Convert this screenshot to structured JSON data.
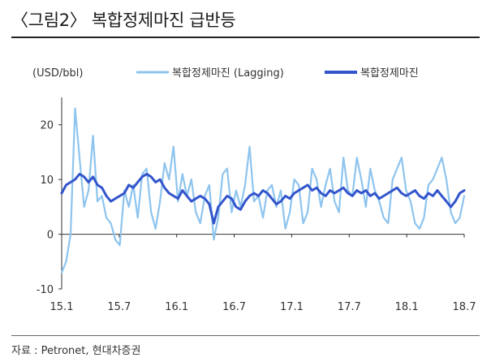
{
  "title": "〈그림2〉 복합정제마진 급반등",
  "source": "자료 : Petronet, 현대차증권",
  "chart_data": {
    "type": "line",
    "unit_label": "(USD/bbl)",
    "x_ticks": [
      "15.1",
      "15.7",
      "16.1",
      "16.7",
      "17.1",
      "17.7",
      "18.1",
      "18.7"
    ],
    "y_ticks": [
      -10,
      0,
      10,
      20
    ],
    "ylim": [
      -10,
      25
    ],
    "xlim": [
      0,
      45
    ],
    "legend_position": "top",
    "grid": false,
    "series": [
      {
        "name": "복합정제마진 (Lagging)",
        "color": "#8ec4ee",
        "x": [
          0,
          0.5,
          1,
          1.5,
          2,
          2.5,
          3,
          3.5,
          4,
          4.5,
          5,
          5.5,
          6,
          6.5,
          7,
          7.5,
          8,
          8.5,
          9,
          9.5,
          10,
          10.5,
          11,
          11.5,
          12,
          12.5,
          13,
          13.5,
          14,
          14.5,
          15,
          15.5,
          16,
          16.5,
          17,
          17.5,
          18,
          18.5,
          19,
          19.5,
          20,
          20.5,
          21,
          21.5,
          22,
          22.5,
          23,
          23.5,
          24,
          24.5,
          25,
          25.5,
          26,
          26.5,
          27,
          27.5,
          28,
          28.5,
          29,
          29.5,
          30,
          30.5,
          31,
          31.5,
          32,
          32.5,
          33,
          33.5,
          34,
          34.5,
          35,
          35.5,
          36,
          36.5,
          37,
          37.5,
          38,
          38.5,
          39,
          39.5,
          40,
          40.5,
          41,
          41.5,
          42,
          42.5,
          43,
          43.5,
          44,
          44.5,
          45
        ],
        "values": [
          -7,
          -5,
          0,
          23,
          14,
          5,
          8,
          18,
          6,
          7,
          3,
          2,
          -1,
          -2,
          8,
          5,
          9,
          3,
          11,
          12,
          4,
          1,
          6,
          13,
          10,
          16,
          6,
          11,
          7,
          10,
          4,
          2,
          7,
          9,
          -1,
          3,
          11,
          12,
          4,
          8,
          5,
          9,
          16,
          6,
          7,
          3,
          8,
          9,
          5,
          8,
          1,
          4,
          10,
          9,
          2,
          4,
          12,
          10,
          5,
          9,
          12,
          6,
          4,
          14,
          8,
          7,
          14,
          10,
          5,
          12,
          8,
          6,
          3,
          2,
          10,
          12,
          14,
          8,
          6,
          2,
          1,
          3,
          9,
          10,
          12,
          14,
          10,
          4,
          2,
          3,
          7
        ]
      },
      {
        "name": "복합정제마진",
        "color": "#3355cc",
        "x": [
          0,
          0.5,
          1,
          1.5,
          2,
          2.5,
          3,
          3.5,
          4,
          4.5,
          5,
          5.5,
          6,
          6.5,
          7,
          7.5,
          8,
          8.5,
          9,
          9.5,
          10,
          10.5,
          11,
          11.5,
          12,
          12.5,
          13,
          13.5,
          14,
          14.5,
          15,
          15.5,
          16,
          16.5,
          17,
          17.5,
          18,
          18.5,
          19,
          19.5,
          20,
          20.5,
          21,
          21.5,
          22,
          22.5,
          23,
          23.5,
          24,
          24.5,
          25,
          25.5,
          26,
          26.5,
          27,
          27.5,
          28,
          28.5,
          29,
          29.5,
          30,
          30.5,
          31,
          31.5,
          32,
          32.5,
          33,
          33.5,
          34,
          34.5,
          35,
          35.5,
          36,
          36.5,
          37,
          37.5,
          38,
          38.5,
          39,
          39.5,
          40,
          40.5,
          41,
          41.5,
          42,
          42.5,
          43,
          43.5,
          44,
          44.5,
          45
        ],
        "values": [
          7.5,
          9,
          9.5,
          10,
          11,
          10.5,
          9.5,
          10.5,
          9,
          8.5,
          7,
          6,
          6.5,
          7,
          7.5,
          9,
          8.5,
          9.5,
          10.5,
          11,
          10.5,
          9.5,
          10,
          8.5,
          7.5,
          7,
          6.5,
          8,
          7,
          6,
          6.5,
          7,
          6.5,
          5.5,
          2,
          5,
          6,
          7,
          6.5,
          5,
          4.5,
          6,
          7,
          7.5,
          7,
          8,
          7.5,
          6.5,
          5.5,
          6,
          7,
          6.5,
          7.5,
          8,
          8.5,
          9,
          8,
          8.5,
          7.5,
          7,
          8,
          7.5,
          8,
          8.5,
          7.5,
          7,
          8,
          7.5,
          8,
          7,
          7.5,
          6.5,
          7,
          7.5,
          8,
          8.5,
          7.5,
          7,
          7.5,
          8,
          7,
          6.5,
          7.5,
          7,
          8,
          7,
          6,
          5,
          6,
          7.5,
          8
        ]
      }
    ]
  }
}
